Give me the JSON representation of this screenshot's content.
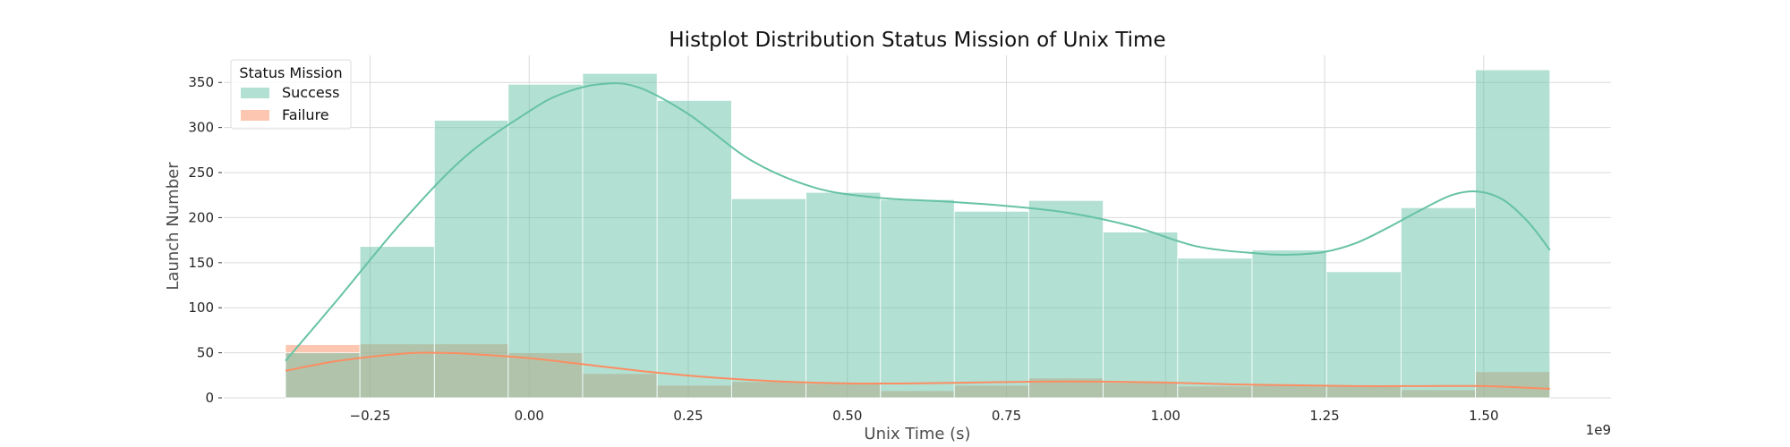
{
  "chart_data": {
    "type": "bar",
    "title": "Histplot Distribution Status Mission of Unix Time",
    "xlabel": "Unix Time (s)",
    "ylabel": "Launch Number",
    "x_offset_label": "1e9",
    "xlim": [
      -0.48,
      1.7
    ],
    "ylim": [
      0,
      380
    ],
    "xticks": [
      -0.25,
      0.0,
      0.25,
      0.5,
      0.75,
      1.0,
      1.25,
      1.5
    ],
    "xtick_labels": [
      "−0.25",
      "0.00",
      "0.25",
      "0.50",
      "0.75",
      "1.00",
      "1.25",
      "1.50"
    ],
    "yticks": [
      0,
      50,
      100,
      150,
      200,
      250,
      300,
      350
    ],
    "ytick_labels": [
      "0",
      "50",
      "100",
      "150",
      "200",
      "250",
      "300",
      "350"
    ],
    "grid": true,
    "legend_position": "top-left",
    "legend_title": "Status Mission",
    "bin_edges": [
      -0.383,
      -0.266,
      -0.149,
      -0.033,
      0.084,
      0.201,
      0.318,
      0.435,
      0.552,
      0.668,
      0.785,
      0.902,
      1.019,
      1.136,
      1.253,
      1.37,
      1.487,
      1.604
    ],
    "series": [
      {
        "name": "Success",
        "color": "#66c2a5",
        "values": [
          50,
          168,
          308,
          348,
          360,
          330,
          221,
          228,
          220,
          207,
          219,
          184,
          155,
          164,
          140,
          211,
          364
        ],
        "kde": {
          "x": [
            -0.383,
            -0.3,
            -0.2,
            -0.1,
            0.0,
            0.05,
            0.11,
            0.17,
            0.25,
            0.35,
            0.45,
            0.55,
            0.65,
            0.75,
            0.85,
            0.95,
            1.05,
            1.15,
            1.2,
            1.25,
            1.3,
            1.35,
            1.4,
            1.45,
            1.49,
            1.53,
            1.57,
            1.604
          ],
          "y": [
            41,
            110,
            195,
            268,
            318,
            337,
            348,
            345,
            315,
            263,
            233,
            222,
            218,
            213,
            205,
            190,
            168,
            160,
            159,
            162,
            172,
            189,
            208,
            225,
            229,
            220,
            195,
            164
          ]
        }
      },
      {
        "name": "Failure",
        "color": "#fc8d62",
        "values": [
          59,
          60,
          60,
          50,
          27,
          14,
          18,
          16,
          8,
          14,
          22,
          17,
          13,
          14,
          13,
          9,
          29
        ],
        "kde": {
          "x": [
            -0.383,
            -0.3,
            -0.2,
            -0.15,
            -0.1,
            0.0,
            0.1,
            0.2,
            0.3,
            0.4,
            0.5,
            0.6,
            0.7,
            0.8,
            0.9,
            1.0,
            1.1,
            1.2,
            1.3,
            1.4,
            1.5,
            1.604
          ],
          "y": [
            30,
            41,
            49,
            50,
            49,
            44,
            36,
            28,
            22,
            18,
            16,
            16,
            17,
            18,
            18,
            17,
            15,
            14,
            13,
            13,
            13,
            10
          ]
        }
      }
    ]
  }
}
